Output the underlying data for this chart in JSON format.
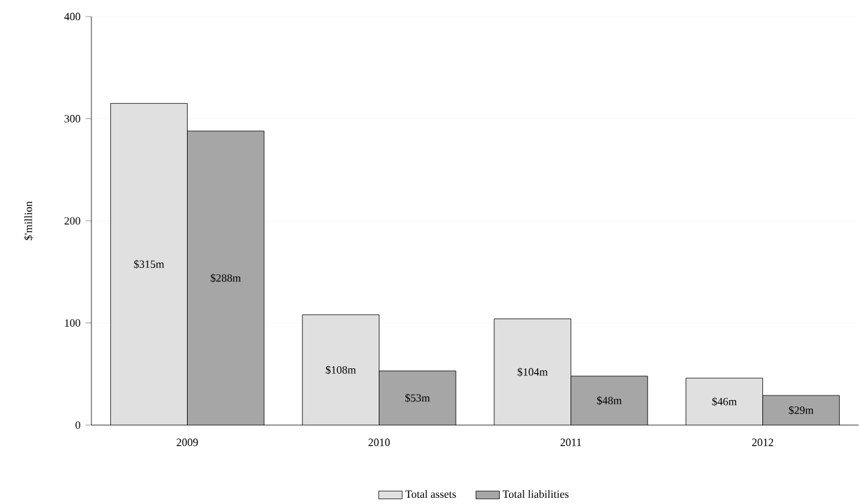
{
  "chart_data": {
    "type": "bar",
    "ylabel": "$'million",
    "categories": [
      "2009",
      "2010",
      "2011",
      "2012"
    ],
    "series": [
      {
        "name": "Total assets",
        "color": "#e0e0e0",
        "values": [
          315,
          108,
          104,
          46
        ],
        "value_labels": [
          "$315m",
          "$108m",
          "$104m",
          "$46m"
        ]
      },
      {
        "name": "Total liabilities",
        "color": "#a6a6a6",
        "values": [
          288,
          53,
          48,
          29
        ],
        "value_labels": [
          "$288m",
          "$53m",
          "$48m",
          "$29m"
        ]
      }
    ],
    "ylim": [
      0,
      400
    ],
    "yticks": [
      0,
      100,
      200,
      300,
      400
    ],
    "grid": "y",
    "legend": "bottom"
  }
}
